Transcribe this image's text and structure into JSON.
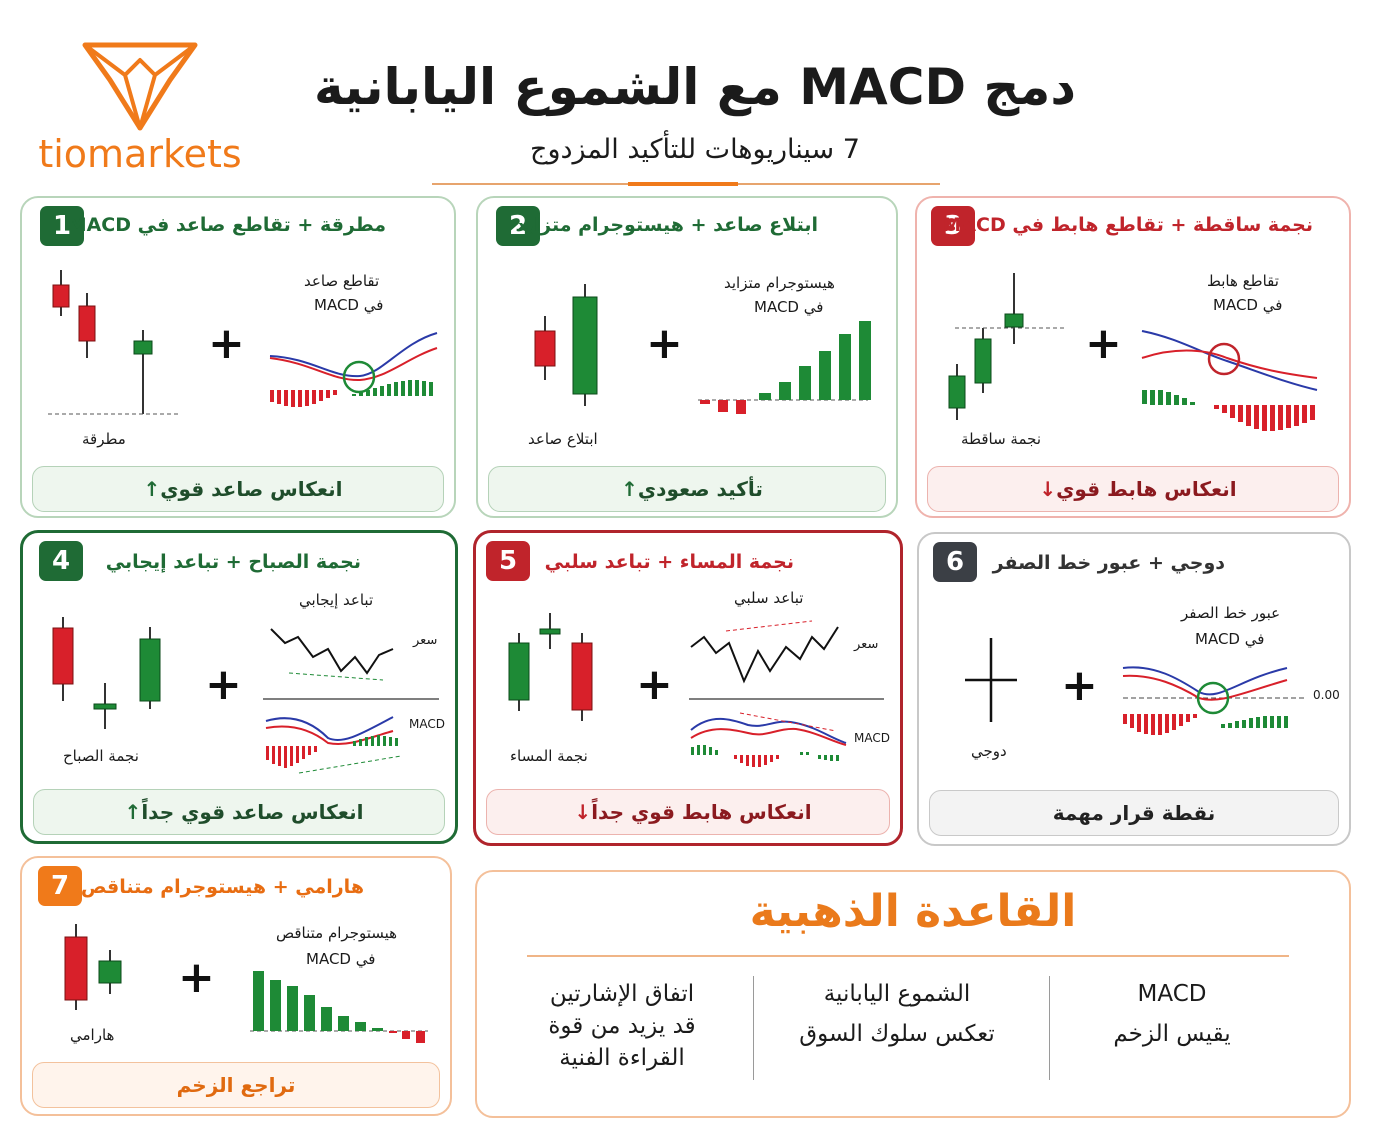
{
  "brand": {
    "logo_text": "tiomarkets",
    "accent": "#f07a1a"
  },
  "header": {
    "title": "دمج MACD مع الشموع اليابانية",
    "subtitle": "7 سيناريوهات للتأكيد المزدوج"
  },
  "colors": {
    "bull": "#1e8a36",
    "bear": "#d8202a",
    "signal_red": "#d8202a",
    "macd_blue": "#2a3aa8"
  },
  "cards": [
    {
      "num": "1",
      "title": "مطرقة + تقاطع صاعد في MACD",
      "left_label": "مطرقة",
      "right_label_1": "تقاطع صاعد",
      "right_label_2": "في MACD",
      "footer": "انعكاس صاعد قوي",
      "arrow": "↑"
    },
    {
      "num": "2",
      "title": "ابتلاع صاعد + هيستوجرام متزايد",
      "left_label": "ابتلاع صاعد",
      "right_label_1": "هيستوجرام متزايد",
      "right_label_2": "في MACD",
      "footer": "تأكيد صعودي",
      "arrow": "↑"
    },
    {
      "num": "3",
      "title": "نجمة ساقطة + تقاطع هابط في MACD",
      "left_label": "نجمة ساقطة",
      "right_label_1": "تقاطع هابط",
      "right_label_2": "في MACD",
      "footer": "انعكاس هابط قوي",
      "arrow": "↓"
    },
    {
      "num": "4",
      "title": "نجمة الصباح + تباعد إيجابي",
      "left_label": "نجمة الصباح",
      "right_label_1": "تباعد إيجابي",
      "price_label": "سعر",
      "macd_label": "MACD",
      "footer": "انعكاس صاعد قوي جداً",
      "arrow": "↑"
    },
    {
      "num": "5",
      "title": "نجمة المساء + تباعد سلبي",
      "left_label": "نجمة المساء",
      "right_label_1": "تباعد سلبي",
      "price_label": "سعر",
      "macd_label": "MACD",
      "footer": "انعكاس هابط قوي جداً",
      "arrow": "↓"
    },
    {
      "num": "6",
      "title": "دوجي + عبور خط الصفر",
      "left_label": "دوجي",
      "right_label_1": "عبور خط الصفر",
      "right_label_2": "في MACD",
      "zero_label": "0.00",
      "footer": "نقطة قرار مهمة",
      "arrow": ""
    },
    {
      "num": "7",
      "title": "هارامي + هيستوجرام متناقص",
      "left_label": "هارامي",
      "right_label_1": "هيستوجرام متناقص",
      "right_label_2": "في MACD",
      "footer": "تراجع الزخم",
      "arrow": ""
    }
  ],
  "plus_sign": "+",
  "golden_rule": {
    "title": "القاعدة الذهبية",
    "columns": [
      {
        "line1": "MACD",
        "line2": "يقيس الزخم",
        "line3": ""
      },
      {
        "line1": "الشموع اليابانية",
        "line2": "تعكس سلوك السوق",
        "line3": ""
      },
      {
        "line1": "اتفاق الإشارتين",
        "line2": "قد يزيد من قوة",
        "line3": "القراءة الفنية"
      }
    ]
  }
}
